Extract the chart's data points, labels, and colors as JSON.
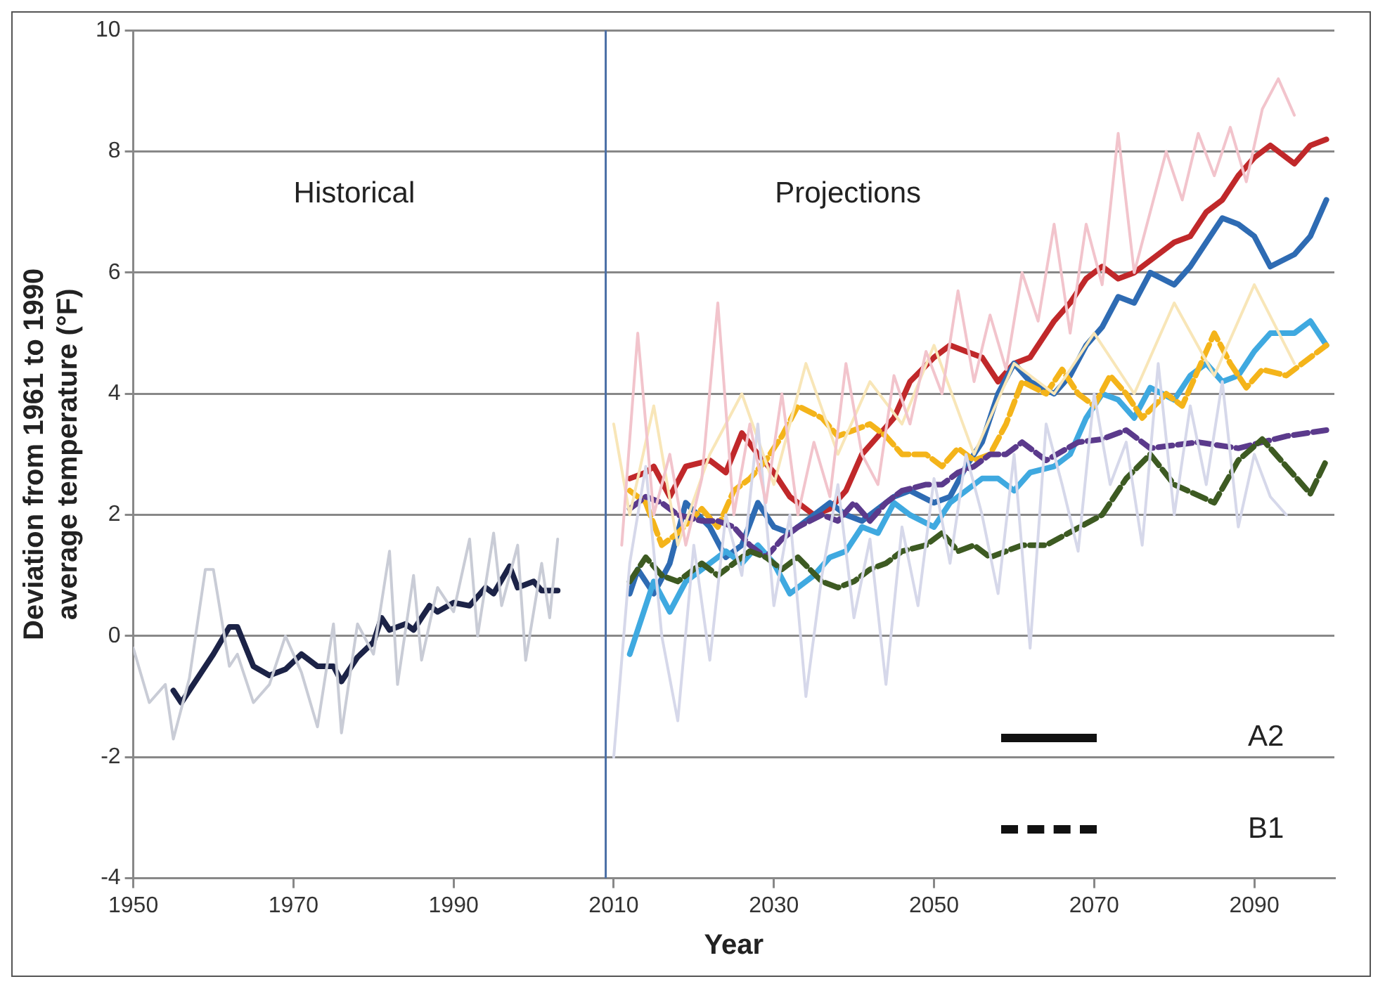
{
  "chart_data": {
    "type": "line",
    "xlabel": "Year",
    "ylabel": "Deviation from 1961 to 1990\naverage temperature (°F)",
    "xlim": [
      1950,
      2100
    ],
    "xticks": [
      1950,
      1970,
      1990,
      2010,
      2030,
      2050,
      2070,
      2090
    ],
    "ylim": [
      -4,
      10
    ],
    "yticks": [
      -4,
      -2,
      0,
      2,
      4,
      6,
      8,
      10
    ],
    "grid": "y",
    "legend": false,
    "marker": "none",
    "ref_lines": [
      {
        "axis": "x",
        "value": 2009,
        "color": "#4a6fa5"
      }
    ],
    "annotations": [
      "Historical",
      "Projections",
      "A2",
      "B1"
    ],
    "series": [
      {
        "color": "#c9ccd6",
        "x": [
          1950,
          1952,
          1954,
          1955,
          1957,
          1959,
          1960,
          1962,
          1963,
          1965,
          1967,
          1969,
          1971,
          1973,
          1975,
          1976,
          1978,
          1980,
          1982,
          1983,
          1985,
          1986,
          1988,
          1990,
          1992,
          1993,
          1995,
          1996,
          1998,
          1999,
          2001,
          2002,
          2003
        ],
        "values": [
          -0.2,
          -1.1,
          -0.8,
          -1.7,
          -0.7,
          1.1,
          1.1,
          -0.5,
          -0.3,
          -1.1,
          -0.8,
          0,
          -0.6,
          -1.5,
          0.2,
          -1.6,
          0.2,
          -0.3,
          1.4,
          -0.8,
          1.0,
          -0.4,
          0.8,
          0.4,
          1.6,
          0.0,
          1.7,
          0.5,
          1.5,
          -0.4,
          1.2,
          0.3,
          1.6
        ]
      },
      {
        "color": "#f2c4cc",
        "x": [
          2011,
          2013,
          2015,
          2017,
          2019,
          2021,
          2023,
          2025,
          2027,
          2029,
          2031,
          2033,
          2035,
          2037,
          2039,
          2041,
          2043,
          2045,
          2047,
          2049,
          2051,
          2053,
          2055,
          2057,
          2059,
          2061,
          2063,
          2065,
          2067,
          2069,
          2071,
          2073,
          2075,
          2077,
          2079,
          2081,
          2083,
          2085,
          2087,
          2089,
          2091,
          2093,
          2095
        ],
        "values": [
          1.5,
          5.0,
          2.0,
          3.0,
          1.5,
          2.6,
          5.5,
          2.0,
          3.5,
          2.2,
          4.0,
          2.0,
          3.2,
          2.3,
          4.5,
          3.0,
          2.5,
          4.3,
          3.5,
          4.7,
          4.0,
          5.7,
          4.2,
          5.3,
          4.4,
          6.0,
          5.2,
          6.8,
          5.0,
          6.8,
          5.8,
          8.3,
          6.0,
          7.0,
          8.0,
          7.2,
          8.3,
          7.6,
          8.4,
          7.5,
          8.7,
          9.2,
          8.6
        ]
      },
      {
        "color": "#d6d8ea",
        "x": [
          2010,
          2012,
          2014,
          2016,
          2018,
          2020,
          2022,
          2024,
          2026,
          2028,
          2030,
          2032,
          2034,
          2036,
          2038,
          2040,
          2042,
          2044,
          2046,
          2048,
          2050,
          2052,
          2054,
          2056,
          2058,
          2060,
          2062,
          2064,
          2066,
          2068,
          2070,
          2072,
          2074,
          2076,
          2078,
          2080,
          2082,
          2084,
          2086,
          2088,
          2090,
          2092,
          2094
        ],
        "values": [
          -2.0,
          1.2,
          2.8,
          0.0,
          -1.4,
          1.5,
          -0.4,
          2.0,
          1.0,
          3.5,
          0.5,
          2.0,
          -1.0,
          1.0,
          2.5,
          0.3,
          1.6,
          -0.8,
          1.8,
          0.5,
          2.6,
          1.2,
          3.0,
          2.0,
          0.7,
          3.0,
          -0.2,
          3.5,
          2.5,
          1.4,
          4.0,
          2.5,
          3.2,
          1.5,
          4.5,
          2.0,
          3.8,
          2.5,
          4.2,
          1.8,
          3.0,
          2.3,
          2.0
        ]
      },
      {
        "color": "#f8e6b8",
        "x": [
          2010,
          2012,
          2015,
          2018,
          2022,
          2026,
          2030,
          2034,
          2038,
          2042,
          2046,
          2050,
          2055,
          2060,
          2065,
          2070,
          2075,
          2080,
          2085,
          2090,
          2095
        ],
        "values": [
          3.5,
          2.0,
          3.8,
          1.5,
          3.0,
          4.0,
          2.5,
          4.5,
          3.0,
          4.2,
          3.5,
          4.8,
          3.0,
          4.5,
          4.0,
          5.0,
          4.0,
          5.5,
          4.3,
          5.8,
          4.5
        ]
      },
      {
        "color": "#1c2347",
        "x": [
          1955,
          1956,
          1958,
          1960,
          1962,
          1963,
          1965,
          1967,
          1969,
          1971,
          1973,
          1975,
          1976,
          1978,
          1980,
          1981,
          1982,
          1984,
          1985,
          1987,
          1988,
          1990,
          1992,
          1994,
          1995,
          1997,
          1998,
          2000,
          2001,
          2003
        ],
        "values": [
          -0.9,
          -1.1,
          -0.7,
          -0.3,
          0.15,
          0.15,
          -0.5,
          -0.65,
          -0.55,
          -0.3,
          -0.5,
          -0.5,
          -0.75,
          -0.35,
          -0.1,
          0.3,
          0.1,
          0.2,
          0.1,
          0.5,
          0.4,
          0.55,
          0.5,
          0.8,
          0.7,
          1.15,
          0.8,
          0.9,
          0.75,
          0.75
        ]
      },
      {
        "color": "#3d5a22",
        "line_style": "dashed",
        "x": [
          2012,
          2014,
          2016,
          2018,
          2021,
          2023,
          2025,
          2027,
          2029,
          2031,
          2033,
          2036,
          2038,
          2040,
          2042,
          2044,
          2046,
          2049,
          2051,
          2053,
          2055,
          2057,
          2059,
          2061,
          2064,
          2071,
          2074,
          2077,
          2080,
          2085,
          2088,
          2091,
          2094,
          2097,
          2099
        ],
        "values": [
          0.9,
          1.3,
          1.0,
          0.9,
          1.2,
          1.0,
          1.2,
          1.4,
          1.3,
          1.1,
          1.3,
          0.9,
          0.8,
          0.9,
          1.1,
          1.2,
          1.4,
          1.5,
          1.7,
          1.4,
          1.5,
          1.3,
          1.4,
          1.5,
          1.5,
          2.0,
          2.6,
          3.0,
          2.5,
          2.2,
          2.9,
          3.25,
          2.8,
          2.35,
          2.9
        ]
      },
      {
        "color": "#5b3a8c",
        "line_style": "dashed",
        "x": [
          2012,
          2014,
          2016,
          2018,
          2021,
          2023,
          2025,
          2027,
          2029,
          2031,
          2033,
          2036,
          2038,
          2040,
          2042,
          2044,
          2046,
          2049,
          2051,
          2053,
          2055,
          2057,
          2059,
          2061,
          2064,
          2068,
          2071,
          2074,
          2077,
          2083,
          2088,
          2094,
          2099
        ],
        "values": [
          2.1,
          2.3,
          2.2,
          2.0,
          1.9,
          1.9,
          1.8,
          1.5,
          1.3,
          1.6,
          1.8,
          2.0,
          1.9,
          2.2,
          1.9,
          2.2,
          2.4,
          2.5,
          2.5,
          2.7,
          2.8,
          3.0,
          3.0,
          3.2,
          2.9,
          3.2,
          3.25,
          3.4,
          3.1,
          3.2,
          3.1,
          3.3,
          3.4
        ]
      },
      {
        "color": "#f4b41a",
        "line_style": "dashed",
        "x": [
          2012,
          2014,
          2016,
          2018,
          2021,
          2023,
          2025,
          2027,
          2029,
          2031,
          2033,
          2036,
          2038,
          2040,
          2042,
          2044,
          2046,
          2049,
          2051,
          2053,
          2055,
          2057,
          2059,
          2061,
          2064,
          2066,
          2068,
          2070,
          2072,
          2074,
          2076,
          2079,
          2081,
          2083,
          2085,
          2087,
          2089,
          2091,
          2094,
          2096,
          2099
        ],
        "values": [
          2.4,
          2.2,
          1.5,
          1.7,
          2.1,
          1.8,
          2.4,
          2.6,
          2.9,
          3.3,
          3.8,
          3.6,
          3.3,
          3.4,
          3.5,
          3.3,
          3.0,
          3.0,
          2.8,
          3.1,
          2.9,
          3.0,
          3.5,
          4.2,
          4.0,
          4.4,
          4.0,
          3.8,
          4.3,
          4.0,
          3.6,
          4.0,
          3.8,
          4.4,
          5.0,
          4.5,
          4.1,
          4.4,
          4.3,
          4.5,
          4.8
        ]
      },
      {
        "color": "#3fa9e0",
        "x": [
          2012,
          2014,
          2015,
          2017,
          2019,
          2022,
          2024,
          2026,
          2028,
          2030,
          2032,
          2035,
          2037,
          2039,
          2041,
          2043,
          2045,
          2047,
          2050,
          2052,
          2054,
          2056,
          2058,
          2060,
          2062,
          2065,
          2067,
          2069,
          2071,
          2073,
          2075,
          2077,
          2080,
          2082,
          2084,
          2086,
          2088,
          2090,
          2092,
          2095,
          2097,
          2099
        ],
        "values": [
          -0.3,
          0.5,
          0.9,
          0.4,
          0.9,
          1.2,
          1.4,
          1.2,
          1.5,
          1.2,
          0.7,
          1.0,
          1.3,
          1.4,
          1.8,
          1.7,
          2.2,
          2.0,
          1.8,
          2.2,
          2.4,
          2.6,
          2.6,
          2.4,
          2.7,
          2.8,
          3.0,
          3.6,
          4.0,
          3.9,
          3.6,
          4.1,
          3.9,
          4.3,
          4.5,
          4.2,
          4.3,
          4.7,
          5.0,
          5.0,
          5.2,
          4.8
        ]
      },
      {
        "color": "#2e6bb3",
        "x": [
          2012,
          2013,
          2015,
          2017,
          2019,
          2022,
          2024,
          2026,
          2028,
          2030,
          2032,
          2035,
          2037,
          2039,
          2041,
          2043,
          2045,
          2047,
          2050,
          2052,
          2054,
          2056,
          2058,
          2060,
          2062,
          2065,
          2067,
          2069,
          2071,
          2073,
          2075,
          2077,
          2080,
          2082,
          2084,
          2086,
          2088,
          2090,
          2092,
          2095,
          2097,
          2099
        ],
        "values": [
          0.7,
          1.1,
          0.7,
          1.2,
          2.2,
          1.8,
          1.3,
          1.5,
          2.2,
          1.8,
          1.7,
          2.0,
          2.2,
          2.0,
          1.9,
          2.1,
          2.3,
          2.4,
          2.2,
          2.3,
          2.8,
          3.2,
          4.0,
          4.5,
          4.2,
          4.0,
          4.3,
          4.8,
          5.1,
          5.6,
          5.5,
          6.0,
          5.8,
          6.1,
          6.5,
          6.9,
          6.8,
          6.6,
          6.1,
          6.3,
          6.6,
          7.2
        ]
      },
      {
        "color": "#c0282a",
        "x": [
          2012,
          2014,
          2015,
          2017,
          2019,
          2022,
          2024,
          2026,
          2028,
          2030,
          2032,
          2035,
          2037,
          2039,
          2041,
          2043,
          2045,
          2047,
          2050,
          2052,
          2054,
          2056,
          2058,
          2060,
          2062,
          2065,
          2067,
          2069,
          2071,
          2073,
          2075,
          2077,
          2080,
          2082,
          2084,
          2086,
          2088,
          2090,
          2092,
          2095,
          2097,
          2099
        ],
        "values": [
          2.6,
          2.7,
          2.8,
          2.3,
          2.8,
          2.9,
          2.7,
          3.35,
          3.0,
          2.7,
          2.3,
          2.0,
          2.1,
          2.4,
          3.0,
          3.3,
          3.6,
          4.2,
          4.6,
          4.8,
          4.7,
          4.6,
          4.2,
          4.5,
          4.6,
          5.2,
          5.5,
          5.9,
          6.1,
          5.9,
          6.0,
          6.2,
          6.5,
          6.6,
          7.0,
          7.2,
          7.6,
          7.9,
          8.1,
          7.8,
          8.1,
          8.2
        ]
      }
    ]
  }
}
